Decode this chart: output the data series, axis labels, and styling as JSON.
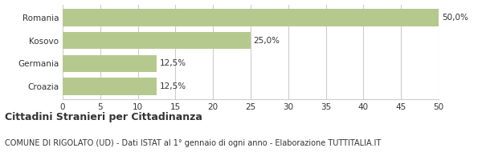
{
  "categories": [
    "Croazia",
    "Germania",
    "Kosovo",
    "Romania"
  ],
  "values": [
    12.5,
    12.5,
    25.0,
    50.0
  ],
  "labels": [
    "12,5%",
    "12,5%",
    "25,0%",
    "50,0%"
  ],
  "bar_color": "#b5c98e",
  "background_color": "#ffffff",
  "grid_color": "#cccccc",
  "text_color": "#333333",
  "title": "Cittadini Stranieri per Cittadinanza",
  "subtitle": "COMUNE DI RIGOLATO (UD) - Dati ISTAT al 1° gennaio di ogni anno - Elaborazione TUTTITALIA.IT",
  "xlim": [
    0,
    50
  ],
  "xticks": [
    0,
    5,
    10,
    15,
    20,
    25,
    30,
    35,
    40,
    45,
    50
  ],
  "title_fontsize": 9,
  "subtitle_fontsize": 7,
  "label_fontsize": 7.5,
  "tick_fontsize": 7.5,
  "bar_height": 0.75
}
